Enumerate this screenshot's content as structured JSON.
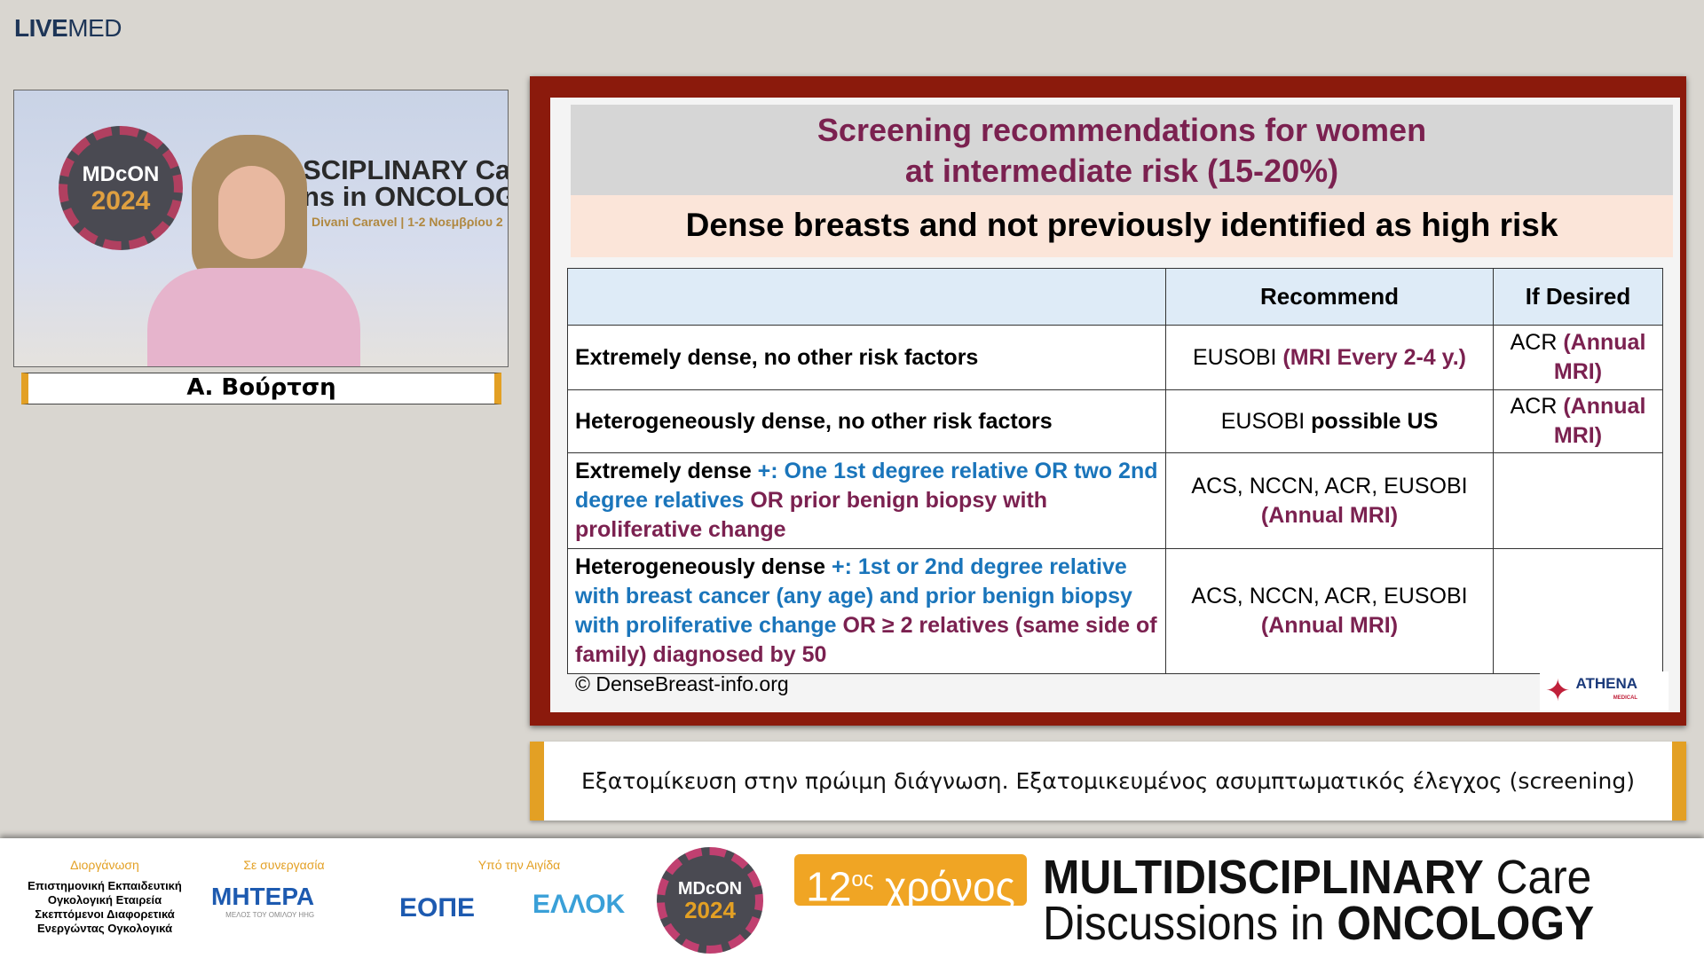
{
  "header": {
    "logo_bold": "LIVE",
    "logo_light": "MED"
  },
  "video": {
    "badge_top": "MDcON",
    "badge_year": "2024",
    "banner_line1": "SCIPLINARY Ca",
    "banner_line2": "ns in ONCOLOG",
    "venue": "Divani Caravel | 1-2 Νοεμβρίου 2",
    "speaker_name": "Α. Βούρτση"
  },
  "slide": {
    "title_line1": "Screening recommendations for women",
    "title_line2": "at intermediate risk (15-20%)",
    "subtitle": "Dense breasts and not previously identified as high risk",
    "table": {
      "headers": [
        "",
        "Recommend",
        "If Desired"
      ],
      "rows": [
        {
          "c1": [
            {
              "t": "Extremely dense, no other risk factors",
              "s": "k"
            }
          ],
          "c2": [
            {
              "t": "EUSOBI ",
              "s": ""
            },
            {
              "t": "(MRI Every 2-4 y.)",
              "s": "mr"
            }
          ],
          "c3": [
            {
              "t": "ACR ",
              "s": ""
            },
            {
              "t": "(Annual MRI)",
              "s": "mr"
            }
          ]
        },
        {
          "c1": [
            {
              "t": "Heterogeneously dense, no other risk factors",
              "s": "k"
            }
          ],
          "c2": [
            {
              "t": "EUSOBI ",
              "s": ""
            },
            {
              "t": "possible US",
              "s": "k"
            }
          ],
          "c3": [
            {
              "t": "ACR ",
              "s": ""
            },
            {
              "t": "(Annual MRI)",
              "s": "mr"
            }
          ]
        },
        {
          "c1": [
            {
              "t": "Extremely dense ",
              "s": "k"
            },
            {
              "t": "+: One 1st degree relative OR two 2nd degree relatives",
              "s": "bl"
            },
            {
              "t": " OR prior benign biopsy with proliferative change",
              "s": "mr"
            }
          ],
          "c2": [
            {
              "t": "ACS, NCCN, ACR, EUSOBI ",
              "s": ""
            },
            {
              "t": "(Annual MRI)",
              "s": "mr"
            }
          ],
          "c3": []
        },
        {
          "c1": [
            {
              "t": "Heterogeneously dense ",
              "s": "k"
            },
            {
              "t": "+: 1st or 2nd degree relative with breast cancer (any age) and prior benign biopsy with proliferative change",
              "s": "bl"
            },
            {
              "t": " OR ≥ 2 relatives (same side of family) diagnosed by 50",
              "s": "mr"
            }
          ],
          "c2": [
            {
              "t": "ACS, NCCN, ACR, EUSOBI ",
              "s": ""
            },
            {
              "t": "(Annual MRI)",
              "s": "mr"
            }
          ],
          "c3": []
        }
      ]
    },
    "copyright": "© DenseBreast-info.org",
    "sponsor_logo": "ATHENA",
    "sponsor_sub": "MEDICAL"
  },
  "caption": "Εξατομίκευση στην πρώιμη διάγνωση. Εξατομικευμένος ασυμπτωματικός έλεγχος (screening)",
  "footer": {
    "organizer_label": "Διοργάνωση",
    "organizer_text": "Επιστημονική Εκπαιδευτική Ογκολογική Εταιρεία Σκεπτόμενοι Διαφορετικά Ενεργώντας Ογκολογικά",
    "partner_label": "Σε συνεργασία",
    "partner_logo": "ΜΗΤΕΡΑ",
    "partner_sub": "ΜΕΛΟΣ ΤΟΥ ΟΜΙΛΟΥ HHG",
    "aegis_label": "Υπό την Αιγίδα",
    "aegis_logo1": "ΕΟΠΕ",
    "aegis_logo2": "ΕΛΛΟΚ",
    "badge_top": "MDcON",
    "badge_year": "2024",
    "edition_num": "12",
    "edition_sup": "ος",
    "edition_word": "χρόνος",
    "event_line1_bold": "MULTIDISCIPLINARY",
    "event_line1_light": " Care",
    "event_line2_light": "Discussions in ",
    "event_line2_bold": "ONCOLOGY"
  },
  "colors": {
    "frame": "#8b1a0c",
    "title": "#7b2150",
    "blue": "#1a75bb",
    "accent": "#e3a024"
  }
}
